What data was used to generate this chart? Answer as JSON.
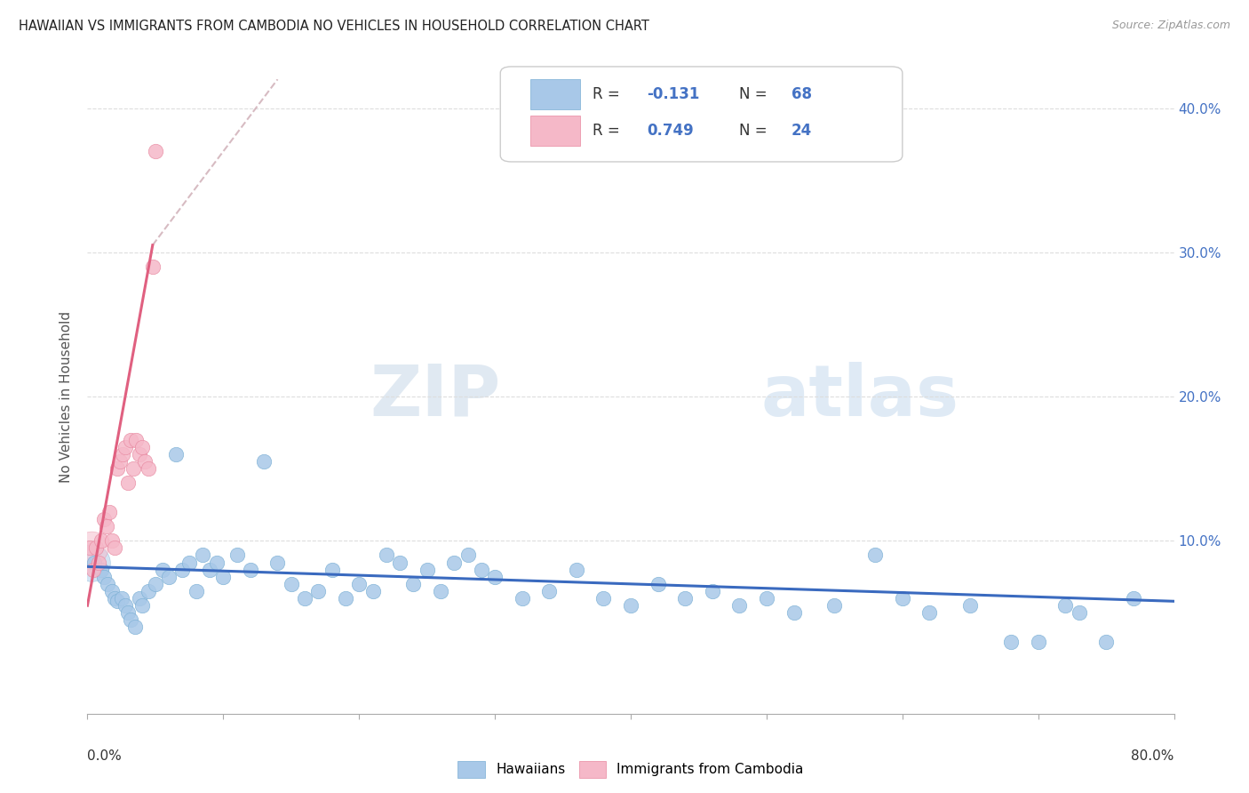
{
  "title": "HAWAIIAN VS IMMIGRANTS FROM CAMBODIA NO VEHICLES IN HOUSEHOLD CORRELATION CHART",
  "source": "Source: ZipAtlas.com",
  "ylabel": "No Vehicles in Household",
  "watermark_zip": "ZIP",
  "watermark_atlas": "atlas",
  "hawaiian_color": "#a8c8e8",
  "hawaiian_edge": "#7aafd4",
  "cambodia_color": "#f5b8c8",
  "cambodia_edge": "#e888a0",
  "trend_hawaiian_color": "#3a6abf",
  "trend_cambodia_color": "#e06080",
  "trend_dashed_color": "#d0b0b8",
  "label_color": "#4472c4",
  "grid_color": "#dddddd",
  "xlim": [
    0,
    80
  ],
  "ylim": [
    -2,
    42
  ],
  "yticks": [
    0,
    10,
    20,
    30,
    40
  ],
  "xtick_positions": [
    0,
    10,
    20,
    30,
    40,
    50,
    60,
    70,
    80
  ],
  "hawaiians_x": [
    0.5,
    1.0,
    1.2,
    1.5,
    1.8,
    2.0,
    2.2,
    2.5,
    2.8,
    3.0,
    3.2,
    3.5,
    3.8,
    4.0,
    4.5,
    5.0,
    5.5,
    6.0,
    6.5,
    7.0,
    7.5,
    8.0,
    8.5,
    9.0,
    9.5,
    10.0,
    11.0,
    12.0,
    13.0,
    14.0,
    15.0,
    16.0,
    17.0,
    18.0,
    19.0,
    20.0,
    21.0,
    22.0,
    23.0,
    24.0,
    25.0,
    26.0,
    27.0,
    28.0,
    29.0,
    30.0,
    32.0,
    34.0,
    36.0,
    38.0,
    40.0,
    42.0,
    44.0,
    46.0,
    48.0,
    50.0,
    52.0,
    55.0,
    58.0,
    60.0,
    62.0,
    65.0,
    68.0,
    70.0,
    72.0,
    73.0,
    75.0,
    77.0
  ],
  "hawaiians_y": [
    8.5,
    8.0,
    7.5,
    7.0,
    6.5,
    6.0,
    5.8,
    6.0,
    5.5,
    5.0,
    4.5,
    4.0,
    6.0,
    5.5,
    6.5,
    7.0,
    8.0,
    7.5,
    16.0,
    8.0,
    8.5,
    6.5,
    9.0,
    8.0,
    8.5,
    7.5,
    9.0,
    8.0,
    15.5,
    8.5,
    7.0,
    6.0,
    6.5,
    8.0,
    6.0,
    7.0,
    6.5,
    9.0,
    8.5,
    7.0,
    8.0,
    6.5,
    8.5,
    9.0,
    8.0,
    7.5,
    6.0,
    6.5,
    8.0,
    6.0,
    5.5,
    7.0,
    6.0,
    6.5,
    5.5,
    6.0,
    5.0,
    5.5,
    9.0,
    6.0,
    5.0,
    5.5,
    3.0,
    3.0,
    5.5,
    5.0,
    3.0,
    6.0
  ],
  "cambodia_x": [
    0.2,
    0.4,
    0.6,
    0.8,
    1.0,
    1.2,
    1.4,
    1.6,
    1.8,
    2.0,
    2.2,
    2.4,
    2.6,
    2.8,
    3.0,
    3.2,
    3.4,
    3.6,
    3.8,
    4.0,
    4.2,
    4.5,
    4.8,
    5.0
  ],
  "cambodia_y": [
    9.5,
    8.0,
    9.5,
    8.5,
    10.0,
    11.5,
    11.0,
    12.0,
    10.0,
    9.5,
    15.0,
    15.5,
    16.0,
    16.5,
    14.0,
    17.0,
    15.0,
    17.0,
    16.0,
    16.5,
    15.5,
    15.0,
    29.0,
    37.0
  ],
  "cambodia_trend_x0": 0.0,
  "cambodia_trend_y0": 5.5,
  "cambodia_trend_x1": 4.8,
  "cambodia_trend_y1": 30.5,
  "cambodia_dash_x0": 4.8,
  "cambodia_dash_y0": 30.5,
  "cambodia_dash_x1": 14.0,
  "cambodia_dash_y1": 42.0,
  "hawaiian_trend_x0": 0.0,
  "hawaiian_trend_y0": 8.2,
  "hawaiian_trend_x1": 80.0,
  "hawaiian_trend_y1": 5.8
}
